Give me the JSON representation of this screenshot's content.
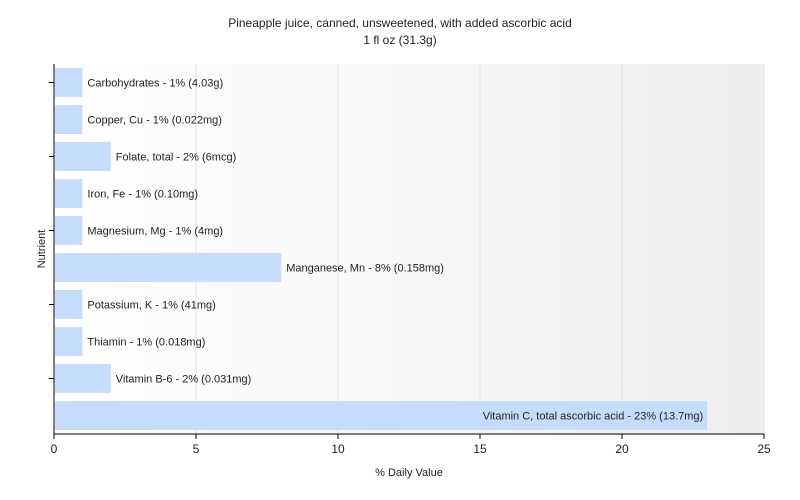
{
  "chart_data": {
    "type": "bar",
    "orientation": "horizontal",
    "title": "Pineapple juice, canned, unsweetened, with added ascorbic acid",
    "subtitle": "1 fl oz (31.3g)",
    "xlabel": "% Daily Value",
    "ylabel": "Nutrient",
    "xlim": [
      0,
      25
    ],
    "xticks": [
      "0",
      "5",
      "10",
      "15",
      "20",
      "25"
    ],
    "grid": true,
    "categories": [
      "Carbohydrates",
      "Copper, Cu",
      "Folate, total",
      "Iron, Fe",
      "Magnesium, Mg",
      "Manganese, Mn",
      "Potassium, K",
      "Thiamin",
      "Vitamin B-6",
      "Vitamin C, total ascorbic acid"
    ],
    "values": [
      1,
      1,
      2,
      1,
      1,
      8,
      1,
      1,
      2,
      23
    ],
    "labels": [
      "Carbohydrates - 1% (4.03g)",
      "Copper, Cu - 1% (0.022mg)",
      "Folate, total - 2% (6mcg)",
      "Iron, Fe - 1% (0.10mg)",
      "Magnesium, Mg - 1% (4mg)",
      "Manganese, Mn - 8% (0.158mg)",
      "Potassium, K - 1% (41mg)",
      "Thiamin - 1% (0.018mg)",
      "Vitamin B-6 - 2% (0.031mg)",
      "Vitamin C, total ascorbic acid - 23% (13.7mg)"
    ],
    "bar_color": "#c6dcfc"
  }
}
